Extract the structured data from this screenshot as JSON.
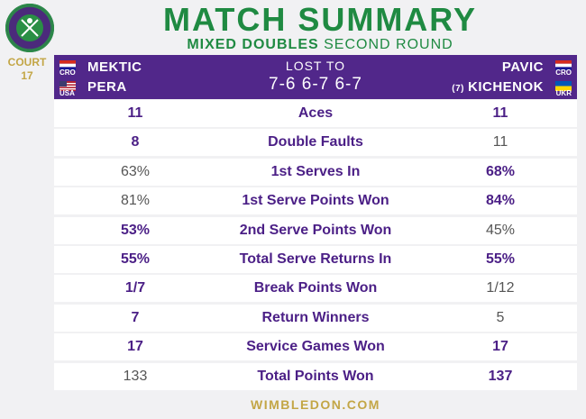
{
  "title": "MATCH SUMMARY",
  "subtitle_bold": "MIXED DOUBLES",
  "subtitle_rest": "SECOND ROUND",
  "logo_text": "THE CHAMPIONSHIPS WIMBLEDON",
  "court_label": "COURT",
  "court_number": "17",
  "left_team": {
    "players": [
      {
        "name": "MEKTIC",
        "country": "CRO"
      },
      {
        "name": "PERA",
        "country": "USA"
      }
    ]
  },
  "right_team": {
    "players": [
      {
        "name": "PAVIC",
        "country": "CRO",
        "seed": ""
      },
      {
        "name": "KICHENOK",
        "country": "UKR",
        "seed": "(7)"
      }
    ]
  },
  "result": "LOST TO",
  "score": "7-6 6-7 6-7",
  "stats": [
    {
      "label": "Aces",
      "left": "11",
      "right": "11",
      "lead": "both"
    },
    {
      "label": "Double Faults",
      "left": "8",
      "right": "11",
      "lead": "left"
    },
    {
      "label": "1st Serves In",
      "left": "63%",
      "right": "68%",
      "lead": "right"
    },
    {
      "label": "1st Serve Points Won",
      "left": "81%",
      "right": "84%",
      "lead": "right"
    },
    {
      "label": "2nd Serve Points Won",
      "left": "53%",
      "right": "45%",
      "lead": "left"
    },
    {
      "label": "Total Serve Returns In",
      "left": "55%",
      "right": "55%",
      "lead": "both"
    },
    {
      "label": "Break Points Won",
      "left": "1/7",
      "right": "1/12",
      "lead": "left"
    },
    {
      "label": "Return Winners",
      "left": "7",
      "right": "5",
      "lead": "left"
    },
    {
      "label": "Service Games Won",
      "left": "17",
      "right": "17",
      "lead": "both"
    },
    {
      "label": "Total Points Won",
      "left": "133",
      "right": "137",
      "lead": "right"
    }
  ],
  "footer": "WIMBLEDON.COM",
  "colors": {
    "purple": "#51278a",
    "green": "#1f8a42",
    "gold": "#c3a646"
  }
}
